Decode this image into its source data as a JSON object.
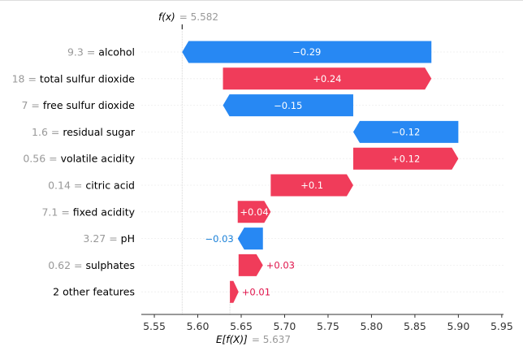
{
  "chart_data": {
    "type": "waterfall",
    "title": "",
    "fx": {
      "prefix": "f(x)",
      "value": "5.582",
      "number": 5.582
    },
    "ex": {
      "prefix": "E[f(X)]",
      "value": "5.637",
      "number": 5.637
    },
    "xlim": [
      5.535,
      5.952
    ],
    "ticks": [
      5.55,
      5.6,
      5.65,
      5.7,
      5.75,
      5.8,
      5.85,
      5.9,
      5.95
    ],
    "tick_labels": [
      "5.55",
      "5.60",
      "5.65",
      "5.70",
      "5.75",
      "5.80",
      "5.85",
      "5.90",
      "5.95"
    ],
    "features": [
      {
        "value": "9.3",
        "name": "alcohol",
        "start": 5.869,
        "end": 5.582,
        "label": "−0.29",
        "sign": "neg",
        "label_inside": true
      },
      {
        "value": "18",
        "name": "total sulfur dioxide",
        "start": 5.629,
        "end": 5.869,
        "label": "+0.24",
        "sign": "pos",
        "label_inside": true
      },
      {
        "value": "7",
        "name": "free sulfur dioxide",
        "start": 5.779,
        "end": 5.629,
        "label": "−0.15",
        "sign": "neg",
        "label_inside": true
      },
      {
        "value": "1.6",
        "name": "residual sugar",
        "start": 5.9,
        "end": 5.779,
        "label": "−0.12",
        "sign": "neg",
        "label_inside": true
      },
      {
        "value": "0.56",
        "name": "volatile acidity",
        "start": 5.779,
        "end": 5.9,
        "label": "+0.12",
        "sign": "pos",
        "label_inside": true
      },
      {
        "value": "0.14",
        "name": "citric acid",
        "start": 5.684,
        "end": 5.779,
        "label": "+0.1",
        "sign": "pos",
        "label_inside": true
      },
      {
        "value": "7.1",
        "name": "fixed acidity",
        "start": 5.646,
        "end": 5.684,
        "label": "+0.04",
        "sign": "pos",
        "label_inside": true
      },
      {
        "value": "3.27",
        "name": "pH",
        "start": 5.675,
        "end": 5.646,
        "label": "−0.03",
        "sign": "neg",
        "label_inside": false
      },
      {
        "value": "0.62",
        "name": "sulphates",
        "start": 5.647,
        "end": 5.675,
        "label": "+0.03",
        "sign": "pos",
        "label_inside": false
      },
      {
        "value": "",
        "name": "2 other features",
        "start": 5.637,
        "end": 5.647,
        "label": "+0.01",
        "sign": "pos",
        "label_inside": false
      }
    ],
    "colors": {
      "positive": "#ff0051",
      "positive_bar": "#f03c5a",
      "negative": "#008bfb",
      "negative_bar": "#2788f3",
      "positive_text": "#e0144b",
      "negative_text": "#1a80d8"
    }
  }
}
